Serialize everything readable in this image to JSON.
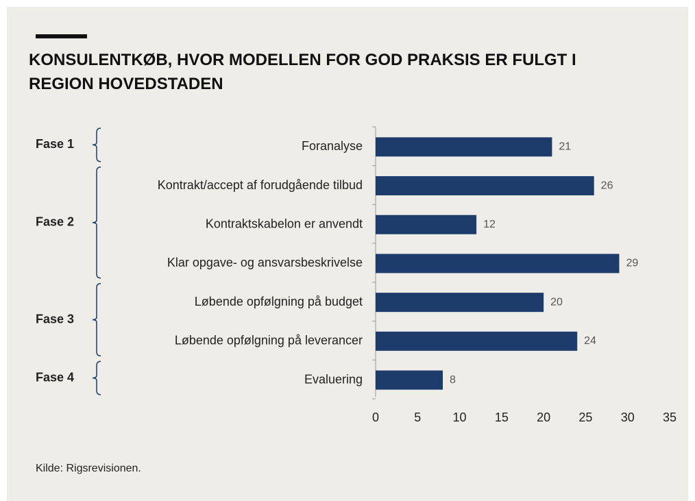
{
  "chart_data": {
    "type": "barh",
    "title": "KONSULENTKØB, HVOR MODELLEN FOR GOD PRAKSIS ER FULGT I REGION HOVEDSTADEN",
    "categories": [
      "Foranalyse",
      "Kontrakt/accept af forudgående tilbud",
      "Kontraktskabelon er anvendt",
      "Klar opgave- og ansvarsbeskrivelse",
      "Løbende opfølgning på budget",
      "Løbende opfølgning på leverancer",
      "Evaluering"
    ],
    "values": [
      21,
      26,
      12,
      29,
      20,
      24,
      8
    ],
    "color": "#1d3b6b",
    "groups": [
      {
        "label": "Fase 1",
        "size": 1
      },
      {
        "label": "Fase 2",
        "size": 3
      },
      {
        "label": "Fase 3",
        "size": 2
      },
      {
        "label": "Fase 4",
        "size": 1
      }
    ],
    "xlim": [
      0,
      35
    ],
    "xticks": [
      0,
      5,
      10,
      15,
      20,
      25,
      30,
      35
    ],
    "source": "Kilde:  Rigsrevisionen."
  }
}
